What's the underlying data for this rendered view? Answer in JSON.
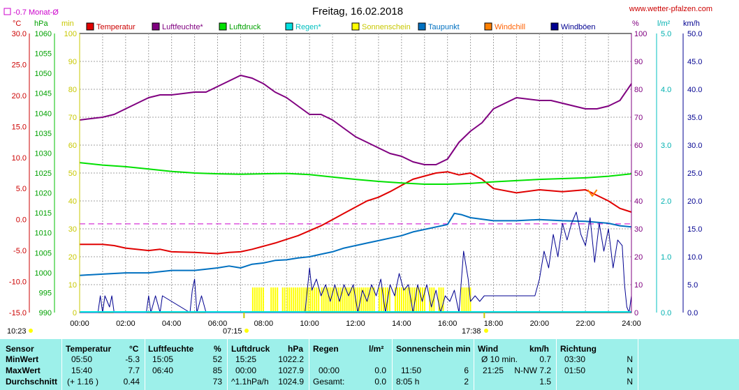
{
  "header": {
    "title": "Freitag, 16.02.2018",
    "website": "www.wetter-pfalzen.com",
    "monthly_avg_label": "-0.7 Monat-Ø",
    "sunrise": "10:23",
    "sun_marker_1": "07:15",
    "sun_marker_2": "17:38"
  },
  "colors": {
    "temperature": "#e00000",
    "humidity": "#800080",
    "pressure": "#00e000",
    "rain": "#00e0e0",
    "sunshine": "#ffff00",
    "dewpoint": "#0070c0",
    "windchill": "#ff8000",
    "gusts": "#000090",
    "grid": "#a0a0a0",
    "table_bg": "#9df0ea"
  },
  "axes_left": {
    "temp_unit": "°C",
    "pressure_unit": "hPa",
    "sun_unit": "min",
    "temp_ticks": [
      "30.0",
      "25.0",
      "20.0",
      "15.0",
      "10.0",
      "5.0",
      "0.0",
      "-5.0",
      "-10.0",
      "-15.0"
    ],
    "pressure_ticks": [
      "1060",
      "1055",
      "1050",
      "1045",
      "1040",
      "1035",
      "1030",
      "1025",
      "1020",
      "1015",
      "1010",
      "1005",
      "1000",
      "995",
      "990"
    ],
    "sun_ticks": [
      "100",
      "90",
      "80",
      "70",
      "60",
      "50",
      "40",
      "30",
      "20",
      "10",
      "0"
    ]
  },
  "axes_right": {
    "hum_unit": "%",
    "rain_unit": "l/m²",
    "wind_unit": "km/h",
    "hum_ticks": [
      "100",
      "90",
      "80",
      "70",
      "60",
      "50",
      "40",
      "30",
      "20",
      "10",
      "0"
    ],
    "rain_ticks": [
      "5.0",
      "4.0",
      "3.0",
      "2.0",
      "1.0",
      "0.0"
    ],
    "wind_ticks": [
      "50.0",
      "45.0",
      "40.0",
      "35.0",
      "30.0",
      "25.0",
      "20.0",
      "15.0",
      "10.0",
      "5.0",
      "0.0"
    ]
  },
  "x_ticks": [
    "00:00",
    "02:00",
    "04:00",
    "06:00",
    "08:00",
    "10:00",
    "12:00",
    "14:00",
    "16:00",
    "18:00",
    "20:00",
    "22:00",
    "24:00"
  ],
  "chart_data": {
    "type": "line",
    "title": "Freitag, 16.02.2018",
    "x_unit": "hour",
    "xlim": [
      0,
      24
    ],
    "monthly_avg_temp": -0.7,
    "legend": [
      "Temperatur",
      "Luftfeuchte*",
      "Luftdruck",
      "Regen*",
      "Sonnenschein",
      "Taupunkt",
      "Windchill",
      "Windböen"
    ],
    "series": [
      {
        "name": "Temperatur",
        "axis": "temp",
        "ylim": [
          -15,
          30
        ],
        "x": [
          0,
          1,
          1.5,
          2,
          3,
          3.5,
          4,
          5,
          6,
          6.5,
          7,
          7.5,
          8,
          8.5,
          9,
          9.5,
          10,
          10.5,
          11,
          11.5,
          12,
          12.5,
          13,
          13.5,
          14,
          14.5,
          15,
          15.5,
          16,
          16.5,
          17,
          17.5,
          18,
          19,
          20,
          21,
          22,
          23,
          23.5,
          24
        ],
        "y": [
          -4.0,
          -4.0,
          -4.2,
          -4.6,
          -5.0,
          -4.8,
          -5.2,
          -5.3,
          -5.5,
          -5.3,
          -5.2,
          -4.8,
          -4.3,
          -3.8,
          -3.2,
          -2.6,
          -1.8,
          -1.0,
          0.0,
          1.0,
          2.0,
          3.0,
          3.6,
          4.5,
          5.5,
          6.5,
          7.0,
          7.5,
          7.7,
          7.2,
          7.5,
          6.5,
          5.0,
          4.3,
          4.8,
          4.5,
          4.8,
          3.0,
          1.8,
          1.2
        ]
      },
      {
        "name": "Luftfeuchte*",
        "axis": "hum",
        "ylim": [
          0,
          100
        ],
        "x": [
          0,
          1,
          1.5,
          2,
          2.5,
          3,
          3.5,
          4,
          5,
          5.5,
          6,
          6.5,
          7,
          7.5,
          8,
          8.5,
          9,
          9.5,
          10,
          10.5,
          11,
          11.5,
          12,
          12.5,
          13,
          13.5,
          14,
          14.5,
          15,
          15.5,
          16,
          16.5,
          17,
          17.5,
          18,
          18.5,
          19,
          20,
          20.5,
          21,
          21.5,
          22,
          22.5,
          23,
          23.5,
          24
        ],
        "y": [
          69,
          70,
          71,
          73,
          75,
          77,
          78,
          78,
          79,
          79,
          81,
          83,
          85,
          84,
          82,
          79,
          77,
          74,
          71,
          71,
          69,
          66,
          63,
          61,
          59,
          57,
          56,
          54,
          53,
          53,
          55,
          61,
          65,
          68,
          73,
          75,
          77,
          76,
          76,
          75,
          74,
          73,
          73,
          74,
          76,
          82
        ]
      },
      {
        "name": "Luftdruck",
        "axis": "pressure",
        "ylim": [
          990,
          1060
        ],
        "x": [
          0,
          1,
          2,
          3,
          4,
          5,
          6,
          7,
          8,
          9,
          10,
          11,
          12,
          13,
          14,
          15,
          16,
          17,
          18,
          19,
          20,
          21,
          22,
          23,
          24
        ],
        "y": [
          1027.6,
          1027.0,
          1026.6,
          1026.0,
          1025.4,
          1025.0,
          1024.8,
          1024.7,
          1024.8,
          1024.9,
          1024.6,
          1024.0,
          1023.4,
          1022.9,
          1022.5,
          1022.2,
          1022.2,
          1022.4,
          1022.8,
          1023.1,
          1023.4,
          1023.6,
          1023.8,
          1024.2,
          1024.8
        ]
      },
      {
        "name": "Taupunkt",
        "axis": "temp",
        "ylim": [
          -15,
          30
        ],
        "x": [
          0,
          1,
          2,
          3,
          4,
          5,
          6,
          6.5,
          7,
          7.5,
          8,
          8.5,
          9,
          9.5,
          10,
          10.5,
          11,
          11.5,
          12,
          12.5,
          13,
          13.5,
          14,
          14.5,
          15,
          15.5,
          16,
          16.3,
          16.6,
          17,
          18,
          19,
          20,
          21,
          22,
          23,
          23.5,
          24
        ],
        "y": [
          -9.0,
          -8.8,
          -8.6,
          -8.6,
          -8.2,
          -8.2,
          -7.8,
          -7.5,
          -7.8,
          -7.2,
          -7.0,
          -6.6,
          -6.5,
          -6.2,
          -6.0,
          -5.6,
          -5.2,
          -4.6,
          -4.2,
          -3.8,
          -3.4,
          -3.0,
          -2.6,
          -2.0,
          -1.6,
          -1.2,
          -0.8,
          1.0,
          0.8,
          0.3,
          -0.2,
          -0.2,
          0.0,
          -0.2,
          -0.3,
          -0.6,
          -1.0,
          -1.2
        ]
      },
      {
        "name": "Windböen",
        "axis": "wind",
        "ylim": [
          0,
          50
        ],
        "x": [
          0,
          0.8,
          0.9,
          1.0,
          1.1,
          1.3,
          1.4,
          1.5,
          2.9,
          3.0,
          3.1,
          3.3,
          3.5,
          3.6,
          4.8,
          4.9,
          5.0,
          5.1,
          5.3,
          5.5,
          5.7,
          5.9,
          6.2,
          9.8,
          9.9,
          10.0,
          10.1,
          10.3,
          10.5,
          10.7,
          10.9,
          11.1,
          11.3,
          11.5,
          11.7,
          11.9,
          12.1,
          12.3,
          12.5,
          12.7,
          12.9,
          13.1,
          13.3,
          13.5,
          13.7,
          13.9,
          14.1,
          14.3,
          14.5,
          14.7,
          14.9,
          15.1,
          15.3,
          15.5,
          15.7,
          15.9,
          16.1,
          16.3,
          16.5,
          16.7,
          16.9,
          17.0,
          17.2,
          17.4,
          17.6,
          18.0,
          18.5,
          19.0,
          19.5,
          19.8,
          20.0,
          20.2,
          20.4,
          20.6,
          20.8,
          21.0,
          21.2,
          21.4,
          21.6,
          21.8,
          22.0,
          22.2,
          22.4,
          22.6,
          22.8,
          23.0,
          23.2,
          23.4,
          23.6,
          23.7,
          23.8,
          23.9,
          24.0
        ],
        "y": [
          0,
          0,
          3,
          0,
          3,
          1,
          3,
          0,
          0,
          3,
          0,
          3,
          0,
          3,
          0,
          4,
          6,
          0,
          3,
          0,
          0,
          0,
          0,
          0,
          4,
          8,
          4,
          6,
          3,
          5,
          2,
          5,
          2,
          5,
          3,
          5,
          0,
          4,
          2,
          5,
          3,
          6,
          0,
          5,
          3,
          7,
          4,
          5,
          0,
          5,
          2,
          5,
          1,
          4,
          0,
          3,
          2,
          4,
          0,
          11,
          6,
          2,
          3,
          2,
          3,
          3,
          3,
          3,
          3,
          3,
          6,
          11,
          8,
          14,
          10,
          16,
          13,
          16,
          18,
          14,
          12,
          17,
          9,
          16,
          11,
          15,
          8,
          13,
          12,
          5,
          1,
          0,
          3
        ]
      },
      {
        "name": "Sonnenschein",
        "axis": "sun",
        "ylim": [
          0,
          100
        ],
        "segments": [
          [
            7.5,
            8.0
          ],
          [
            8.3,
            8.6
          ],
          [
            8.8,
            8.9
          ],
          [
            9.0,
            10.4
          ],
          [
            10.5,
            12.8
          ],
          [
            13.0,
            13.5
          ],
          [
            13.7,
            15.0
          ],
          [
            15.2,
            15.4
          ],
          [
            15.6,
            15.8
          ],
          [
            16.6,
            17.0
          ]
        ],
        "values": [
          5,
          5,
          5,
          5,
          5,
          5,
          5,
          5,
          5,
          5
        ]
      },
      {
        "name": "Windchill",
        "axis": "temp",
        "ylim": [
          -15,
          30
        ],
        "x": [
          22.1,
          22.3,
          22.5
        ],
        "y": [
          4.8,
          3.8,
          4.8
        ]
      }
    ]
  },
  "table": {
    "headers": {
      "sensor": "Sensor",
      "temp": "Temperatur",
      "temp_unit": "°C",
      "hum": "Luftfeuchte",
      "hum_unit": "%",
      "press": "Luftdruck",
      "press_unit": "hPa",
      "rain": "Regen",
      "rain_unit": "l/m²",
      "sun": "Sonnenschein min",
      "wind": "Wind",
      "wind_unit": "km/h",
      "dir": "Richtung"
    },
    "rows": [
      {
        "label": "MinWert",
        "temp_time": "05:50",
        "temp_val": "-5.3",
        "hum_time": "15:05",
        "hum_val": "52",
        "press_time": "15:25",
        "press_val": "1022.2",
        "rain_time": "",
        "rain_val": "",
        "sun_time": "",
        "sun_val": "",
        "wind_time": "Ø 10 min.",
        "wind_val": "0.7",
        "dir_time": "03:30",
        "dir_val": "N"
      },
      {
        "label": "MaxWert",
        "temp_time": "15:40",
        "temp_val": "7.7",
        "hum_time": "06:40",
        "hum_val": "85",
        "press_time": "00:00",
        "press_val": "1027.9",
        "rain_time": "00:00",
        "rain_val": "0.0",
        "sun_time": "11:50",
        "sun_val": "6",
        "wind_time": "21:25",
        "wind_val": "N-NW 7.2",
        "dir_time": "01:50",
        "dir_val": "N"
      },
      {
        "label": "Durchschnitt",
        "temp_time": "(+ 1.16 )",
        "temp_val": "0.44",
        "hum_time": "",
        "hum_val": "73",
        "press_time": "^1.1hPa/h",
        "press_val": "1024.9",
        "rain_time": "Gesamt:",
        "rain_val": "0.0",
        "sun_time": "8:05 h",
        "sun_val": "2",
        "wind_time": "",
        "wind_val": "1.5",
        "dir_time": "",
        "dir_val": "N"
      }
    ]
  }
}
